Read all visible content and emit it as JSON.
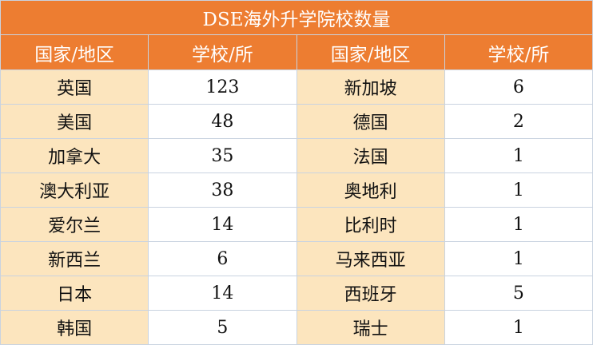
{
  "title": "DSE海外升学院校数量",
  "headers": [
    "国家/地区",
    "学校/所",
    "国家/地区",
    "学校/所"
  ],
  "rows": [
    {
      "left_country": "英国",
      "left_count": "123",
      "right_country": "新加坡",
      "right_count": "6"
    },
    {
      "left_country": "美国",
      "left_count": "48",
      "right_country": "德国",
      "right_count": "2"
    },
    {
      "left_country": "加拿大",
      "left_count": "35",
      "right_country": "法国",
      "right_count": "1"
    },
    {
      "left_country": "澳大利亚",
      "left_count": "38",
      "right_country": "奥地利",
      "right_count": "1"
    },
    {
      "left_country": "爱尔兰",
      "left_count": "14",
      "right_country": "比利时",
      "right_count": "1"
    },
    {
      "left_country": "新西兰",
      "left_count": "6",
      "right_country": "马来西亚",
      "right_count": "1"
    },
    {
      "left_country": "日本",
      "left_count": "14",
      "right_country": "西班牙",
      "right_count": "5"
    },
    {
      "left_country": "韩国",
      "left_count": "5",
      "right_country": "瑞士",
      "right_count": "1"
    }
  ],
  "colors": {
    "header": "#ED7D31",
    "country_cell": "#FCE5BE",
    "value_cell": "#FFFFFF"
  }
}
